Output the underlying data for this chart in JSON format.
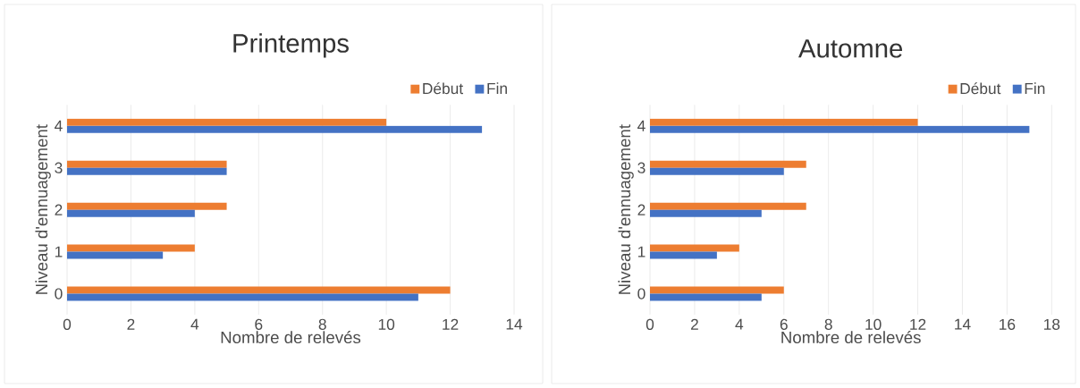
{
  "chart_data": [
    {
      "type": "bar",
      "orientation": "horizontal",
      "title": "Printemps",
      "xlabel": "Nombre de relevés",
      "ylabel": "Niveau d'ennuagement",
      "categories": [
        "4",
        "3",
        "2",
        "1",
        "0"
      ],
      "series": [
        {
          "name": "Début",
          "color": "#ed7d31",
          "values": [
            10,
            5,
            5,
            4,
            12
          ]
        },
        {
          "name": "Fin",
          "color": "#4472c4",
          "values": [
            13,
            5,
            4,
            3,
            11
          ]
        }
      ],
      "xlim": [
        0,
        14
      ],
      "xticks": [
        0,
        2,
        4,
        6,
        8,
        10,
        12,
        14
      ],
      "grid": "x",
      "legend": "top right"
    },
    {
      "type": "bar",
      "orientation": "horizontal",
      "title": "Automne",
      "xlabel": "Nombre de relevés",
      "ylabel": "Niveau d'ennuagement",
      "categories": [
        "4",
        "3",
        "2",
        "1",
        "0"
      ],
      "series": [
        {
          "name": "Début",
          "color": "#ed7d31",
          "values": [
            12,
            7,
            7,
            4,
            6
          ]
        },
        {
          "name": "Fin",
          "color": "#4472c4",
          "values": [
            17,
            6,
            5,
            3,
            5
          ]
        }
      ],
      "xlim": [
        0,
        18
      ],
      "xticks": [
        0,
        2,
        4,
        6,
        8,
        10,
        12,
        14,
        16,
        18
      ],
      "grid": "x",
      "legend": "top right"
    }
  ]
}
